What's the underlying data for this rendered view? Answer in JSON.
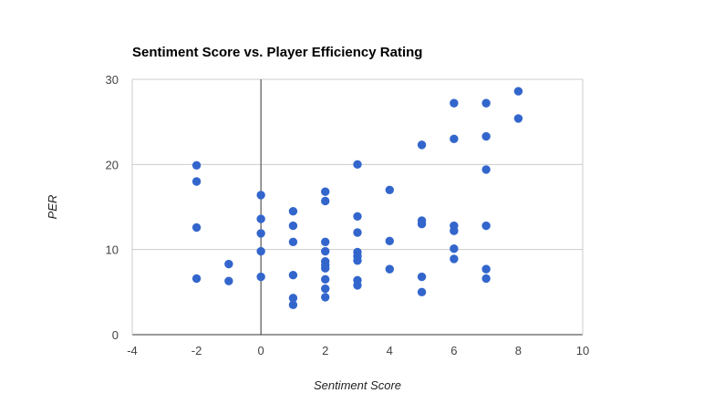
{
  "chart_data": {
    "type": "scatter",
    "title": "Sentiment Score vs. Player Efficiency Rating",
    "xlabel": "Sentiment Score",
    "ylabel": "PER",
    "xlim": [
      -4,
      10
    ],
    "ylim": [
      0,
      30
    ],
    "x_ticks": [
      "-4",
      "-2",
      "0",
      "2",
      "4",
      "6",
      "8",
      "10"
    ],
    "y_ticks": [
      "0",
      "10",
      "20",
      "30"
    ],
    "grid": true,
    "legend": "none",
    "point_color": "#3366cc",
    "points": [
      {
        "x": -2,
        "y": 19.9
      },
      {
        "x": -2,
        "y": 18.0
      },
      {
        "x": -2,
        "y": 12.6
      },
      {
        "x": -2,
        "y": 6.6
      },
      {
        "x": -1,
        "y": 8.3
      },
      {
        "x": -1,
        "y": 6.3
      },
      {
        "x": 0,
        "y": 16.4
      },
      {
        "x": 0,
        "y": 13.6
      },
      {
        "x": 0,
        "y": 11.9
      },
      {
        "x": 0,
        "y": 9.8
      },
      {
        "x": 0,
        "y": 6.8
      },
      {
        "x": 1,
        "y": 14.5
      },
      {
        "x": 1,
        "y": 12.8
      },
      {
        "x": 1,
        "y": 10.9
      },
      {
        "x": 1,
        "y": 7.0
      },
      {
        "x": 1,
        "y": 4.3
      },
      {
        "x": 1,
        "y": 3.5
      },
      {
        "x": 2,
        "y": 16.8
      },
      {
        "x": 2,
        "y": 15.7
      },
      {
        "x": 2,
        "y": 10.9
      },
      {
        "x": 2,
        "y": 9.8
      },
      {
        "x": 2,
        "y": 8.6
      },
      {
        "x": 2,
        "y": 8.2
      },
      {
        "x": 2,
        "y": 7.8
      },
      {
        "x": 2,
        "y": 6.5
      },
      {
        "x": 2,
        "y": 5.4
      },
      {
        "x": 2,
        "y": 4.4
      },
      {
        "x": 3,
        "y": 20.0
      },
      {
        "x": 3,
        "y": 13.9
      },
      {
        "x": 3,
        "y": 12.0
      },
      {
        "x": 3,
        "y": 9.7
      },
      {
        "x": 3,
        "y": 9.2
      },
      {
        "x": 3,
        "y": 8.7
      },
      {
        "x": 3,
        "y": 6.4
      },
      {
        "x": 3,
        "y": 5.8
      },
      {
        "x": 4,
        "y": 17.0
      },
      {
        "x": 4,
        "y": 11.0
      },
      {
        "x": 4,
        "y": 7.7
      },
      {
        "x": 5,
        "y": 22.3
      },
      {
        "x": 5,
        "y": 13.4
      },
      {
        "x": 5,
        "y": 13.0
      },
      {
        "x": 5,
        "y": 6.8
      },
      {
        "x": 5,
        "y": 5.0
      },
      {
        "x": 6,
        "y": 27.2
      },
      {
        "x": 6,
        "y": 23.0
      },
      {
        "x": 6,
        "y": 12.8
      },
      {
        "x": 6,
        "y": 12.2
      },
      {
        "x": 6,
        "y": 10.1
      },
      {
        "x": 6,
        "y": 8.9
      },
      {
        "x": 7,
        "y": 27.2
      },
      {
        "x": 7,
        "y": 23.3
      },
      {
        "x": 7,
        "y": 19.4
      },
      {
        "x": 7,
        "y": 12.8
      },
      {
        "x": 7,
        "y": 7.7
      },
      {
        "x": 7,
        "y": 6.6
      },
      {
        "x": 8,
        "y": 28.6
      },
      {
        "x": 8,
        "y": 25.4
      }
    ]
  }
}
